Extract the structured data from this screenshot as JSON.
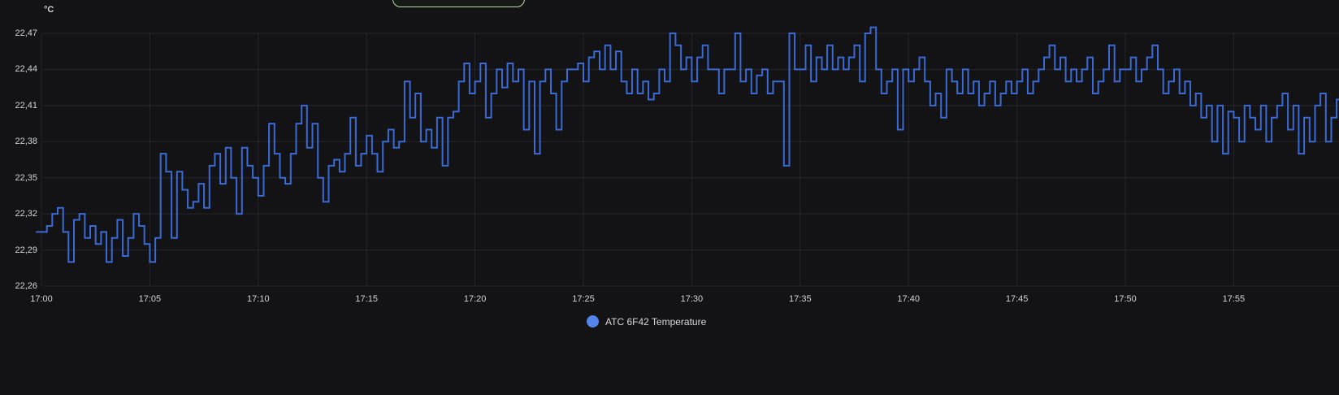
{
  "panel": {
    "background_color": "#131316",
    "grid_color": "rgba(201,209,217,0.10)",
    "text_color": "#d2d4d8",
    "unit_label": "°C",
    "top_pill": {
      "border_color": "#bdd7ab",
      "circle_color": "#c9e2b6",
      "dot_color": "#5d6b55"
    }
  },
  "chart_data": {
    "type": "line",
    "line_style": "step-after",
    "title": "",
    "xlabel": "",
    "ylabel": "°C",
    "grid": true,
    "legend_position": "bottom-center",
    "x_axis": {
      "tick_labels": [
        "17:00",
        "17:05",
        "17:10",
        "17:15",
        "17:20",
        "17:25",
        "17:30",
        "17:35",
        "17:40",
        "17:45",
        "17:50",
        "17:55"
      ],
      "tick_interval_minutes": 5,
      "range_minutes": [
        0,
        59.9
      ]
    },
    "y_axis": {
      "tick_labels": [
        "22,47",
        "22,44",
        "22,41",
        "22,38",
        "22,35",
        "22,32",
        "22,29",
        "22,26"
      ],
      "tick_values": [
        22.47,
        22.44,
        22.41,
        22.38,
        22.35,
        22.32,
        22.29,
        22.26
      ],
      "min": 22.26,
      "max": 22.47,
      "decimal_separator": ","
    },
    "legend": {
      "label": "ATC 6F42 Temperature",
      "dot_color": "#5483ea"
    },
    "series": [
      {
        "name": "ATC 6F42 Temperature",
        "color": "#3a6ad4",
        "line_width": 2,
        "start_minute": -0.25,
        "interval_seconds": 15,
        "values": [
          22.305,
          22.305,
          22.31,
          22.32,
          22.325,
          22.305,
          22.28,
          22.315,
          22.32,
          22.3,
          22.31,
          22.295,
          22.305,
          22.28,
          22.3,
          22.315,
          22.285,
          22.3,
          22.32,
          22.31,
          22.295,
          22.28,
          22.3,
          22.37,
          22.355,
          22.3,
          22.355,
          22.34,
          22.325,
          22.33,
          22.345,
          22.325,
          22.36,
          22.37,
          22.345,
          22.375,
          22.35,
          22.32,
          22.375,
          22.36,
          22.35,
          22.335,
          22.36,
          22.395,
          22.37,
          22.35,
          22.345,
          22.37,
          22.395,
          22.41,
          22.375,
          22.395,
          22.35,
          22.33,
          22.36,
          22.365,
          22.355,
          22.37,
          22.4,
          22.36,
          22.37,
          22.385,
          22.37,
          22.355,
          22.38,
          22.39,
          22.375,
          22.38,
          22.43,
          22.4,
          22.42,
          22.38,
          22.39,
          22.375,
          22.4,
          22.36,
          22.4,
          22.405,
          22.43,
          22.445,
          22.42,
          22.43,
          22.445,
          22.4,
          22.42,
          22.44,
          22.425,
          22.445,
          22.43,
          22.44,
          22.39,
          22.43,
          22.37,
          22.43,
          22.44,
          22.42,
          22.39,
          22.43,
          22.44,
          22.44,
          22.445,
          22.43,
          22.45,
          22.455,
          22.44,
          22.46,
          22.44,
          22.455,
          22.43,
          22.42,
          22.44,
          22.42,
          22.43,
          22.415,
          22.42,
          22.44,
          22.43,
          22.47,
          22.46,
          22.44,
          22.45,
          22.43,
          22.45,
          22.46,
          22.44,
          22.44,
          22.42,
          22.44,
          22.44,
          22.47,
          22.43,
          22.44,
          22.42,
          22.435,
          22.44,
          22.42,
          22.43,
          22.43,
          22.36,
          22.47,
          22.44,
          22.44,
          22.46,
          22.43,
          22.45,
          22.44,
          22.46,
          22.44,
          22.45,
          22.44,
          22.45,
          22.46,
          22.43,
          22.47,
          22.475,
          22.44,
          22.42,
          22.43,
          22.44,
          22.39,
          22.44,
          22.43,
          22.44,
          22.45,
          22.43,
          22.41,
          22.42,
          22.4,
          22.44,
          22.43,
          22.42,
          22.44,
          22.42,
          22.43,
          22.41,
          22.42,
          22.43,
          22.41,
          22.42,
          22.43,
          22.42,
          22.43,
          22.44,
          22.42,
          22.43,
          22.44,
          22.45,
          22.46,
          22.44,
          22.45,
          22.43,
          22.44,
          22.43,
          22.44,
          22.45,
          22.42,
          22.43,
          22.44,
          22.46,
          22.43,
          22.44,
          22.44,
          22.45,
          22.43,
          22.44,
          22.45,
          22.46,
          22.44,
          22.42,
          22.43,
          22.44,
          22.42,
          22.43,
          22.41,
          22.42,
          22.4,
          22.41,
          22.38,
          22.41,
          22.37,
          22.405,
          22.4,
          22.38,
          22.41,
          22.4,
          22.39,
          22.41,
          22.38,
          22.4,
          22.41,
          22.42,
          22.39,
          22.41,
          22.37,
          22.4,
          22.38,
          22.41,
          22.42,
          22.38,
          22.4,
          22.415
        ]
      }
    ]
  }
}
